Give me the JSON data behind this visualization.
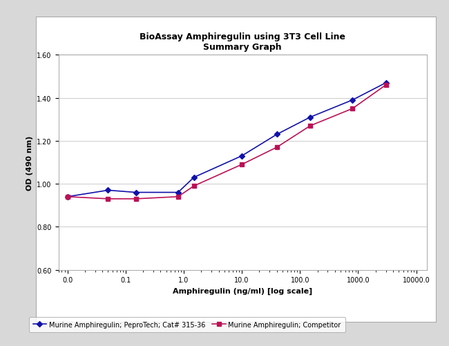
{
  "title_line1": "BioAssay Amphiregulin using 3T3 Cell Line",
  "title_line2": "Summary Graph",
  "xlabel": "Amphiregulin (ng/ml) [log scale]",
  "ylabel": "OD (490 nm)",
  "ylim": [
    0.6,
    1.6
  ],
  "yticks": [
    0.6,
    0.8,
    1.0,
    1.2,
    1.4,
    1.6
  ],
  "series1": {
    "label": "Murine Amphiregulin; PeproTech; Cat# 315-36",
    "color": "#1111aa",
    "marker": "D",
    "x": [
      0.01,
      0.05,
      0.15,
      0.8,
      1.5,
      10.0,
      40.0,
      150.0,
      800.0,
      3000.0
    ],
    "y": [
      0.94,
      0.97,
      0.96,
      0.96,
      1.03,
      1.13,
      1.23,
      1.31,
      1.39,
      1.47
    ]
  },
  "series2": {
    "label": "Murine Amphiregulin; Competitor",
    "color": "#bb1155",
    "marker": "s",
    "x": [
      0.01,
      0.05,
      0.15,
      0.8,
      1.5,
      10.0,
      40.0,
      150.0,
      800.0,
      3000.0
    ],
    "y": [
      0.94,
      0.93,
      0.93,
      0.94,
      0.99,
      1.09,
      1.17,
      1.27,
      1.35,
      1.46
    ]
  },
  "xtick_positions": [
    0.01,
    0.1,
    1.0,
    10.0,
    100.0,
    1000.0,
    10000.0
  ],
  "xtick_labels": [
    "0.0",
    "0.1",
    "1.0",
    "10.0",
    "100.0",
    "1000.0",
    "10000.0"
  ],
  "background_color": "#f0f0f0",
  "plot_bg_color": "#ffffff",
  "grid_color": "#cccccc",
  "outer_bg": "#e8e8e8"
}
